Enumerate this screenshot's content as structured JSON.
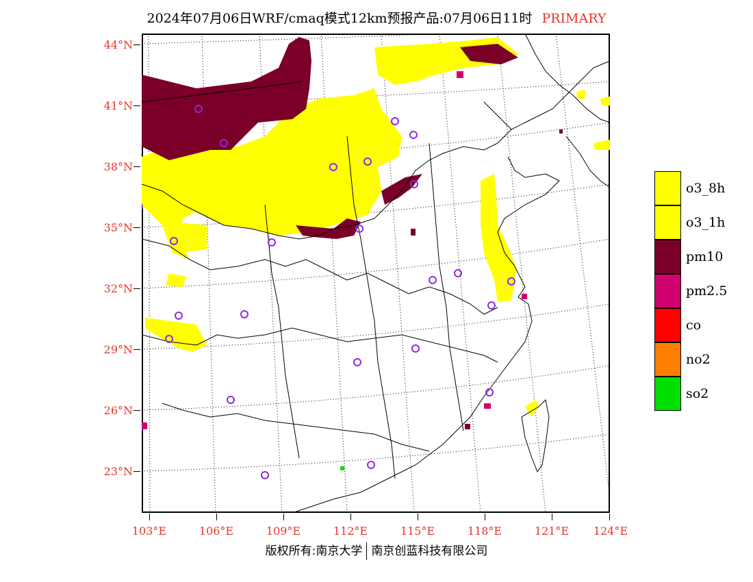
{
  "title": {
    "main": "2024年07月06日WRF/cmaq模式12km预报产品:07月06日11时",
    "tag": "PRIMARY",
    "tag_color": "#e8342b"
  },
  "latitude_labels": [
    "44°N",
    "41°N",
    "38°N",
    "35°N",
    "32°N",
    "29°N",
    "26°N",
    "23°N"
  ],
  "longitude_labels": [
    "103°E",
    "106°E",
    "109°E",
    "112°E",
    "115°E",
    "118°E",
    "121°E",
    "124°E"
  ],
  "legend": [
    {
      "label": "o3_8h",
      "color": "#ffff00"
    },
    {
      "label": "o3_1h",
      "color": "#ffff00"
    },
    {
      "label": "pm10",
      "color": "#7a0028"
    },
    {
      "label": "pm2.5",
      "color": "#d1006f"
    },
    {
      "label": "co",
      "color": "#ff0000"
    },
    {
      "label": "no2",
      "color": "#ff7f00"
    },
    {
      "label": "so2",
      "color": "#00e000"
    }
  ],
  "footer": {
    "left": "版权所有:南京大学",
    "right": "南京创蓝科技有限公司"
  },
  "map": {
    "land_color": "#ffffff",
    "boundary_color": "#000000",
    "station_marker": "circle",
    "station_color": "#8a2be2"
  }
}
